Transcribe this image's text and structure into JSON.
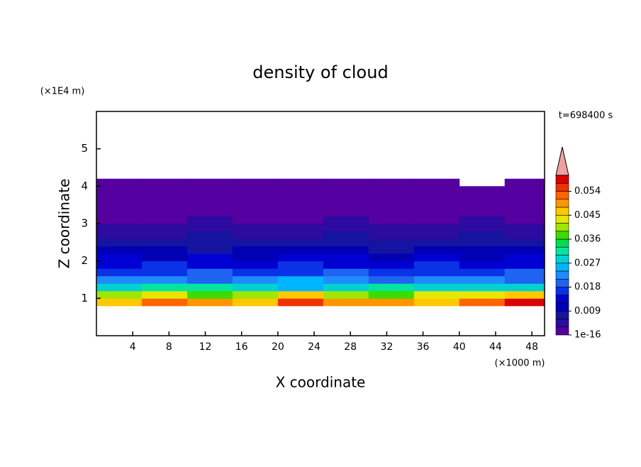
{
  "chart_data": {
    "type": "contour",
    "title": "density of cloud",
    "x_label": "X coordinate",
    "y_label": "Z coordinate",
    "x_unit": "(×1000 m)",
    "y_unit": "(×1E4 m)",
    "annotation": "t=698400 s",
    "xlim": [
      0,
      49.4
    ],
    "ylim": [
      0,
      6
    ],
    "xticks": [
      4,
      8,
      12,
      16,
      20,
      24,
      28,
      32,
      36,
      40,
      44,
      48
    ],
    "yticks": [
      1,
      2,
      3,
      4,
      5
    ],
    "x": [
      2.5,
      7.5,
      12.5,
      17.5,
      22.5,
      27.5,
      32.5,
      37.5,
      42.5,
      47.5
    ],
    "y": [
      0.9,
      1.1,
      1.3,
      1.5,
      1.7,
      1.9,
      2.1,
      2.3,
      2.5,
      2.7,
      2.9,
      3.1,
      3.3,
      3.5,
      3.7,
      3.9,
      4.1
    ],
    "z": [
      [
        0.048,
        0.052,
        0.05,
        0.046,
        0.055,
        0.049,
        0.051,
        0.047,
        0.053,
        0.057
      ],
      [
        0.04,
        0.044,
        0.038,
        0.042,
        0.046,
        0.041,
        0.039,
        0.043,
        0.045,
        0.048
      ],
      [
        0.028,
        0.031,
        0.033,
        0.029,
        0.027,
        0.03,
        0.032,
        0.028,
        0.03,
        0.029
      ],
      [
        0.022,
        0.024,
        0.021,
        0.023,
        0.025,
        0.022,
        0.02,
        0.024,
        0.023,
        0.021
      ],
      [
        0.018,
        0.017,
        0.019,
        0.018,
        0.016,
        0.019,
        0.018,
        0.017,
        0.018,
        0.019
      ],
      [
        0.015,
        0.016,
        0.014,
        0.015,
        0.016,
        0.014,
        0.015,
        0.016,
        0.015,
        0.014
      ],
      [
        0.013,
        0.012,
        0.013,
        0.012,
        0.013,
        0.013,
        0.012,
        0.013,
        0.012,
        0.013
      ],
      [
        0.01,
        0.011,
        0.009,
        0.01,
        0.011,
        0.01,
        0.009,
        0.01,
        0.011,
        0.01
      ],
      [
        0.008,
        0.007,
        0.008,
        0.008,
        0.007,
        0.008,
        0.008,
        0.007,
        0.008,
        0.007
      ],
      [
        0.006,
        0.006,
        0.007,
        0.006,
        0.006,
        0.007,
        0.006,
        0.006,
        0.007,
        0.006
      ],
      [
        0.005,
        0.004,
        0.005,
        0.005,
        0.004,
        0.005,
        0.005,
        0.004,
        0.005,
        0.005
      ],
      [
        0.003,
        0.003,
        0.004,
        0.003,
        0.003,
        0.004,
        0.003,
        0.003,
        0.004,
        0.003
      ],
      [
        0.001,
        0.001,
        0.001,
        0.001,
        0.001,
        0.001,
        0.001,
        0.001,
        0.001,
        0.001
      ],
      [
        0.001,
        0.001,
        0.001,
        0.001,
        0.001,
        0.001,
        0.001,
        0.001,
        0.001,
        0.001
      ],
      [
        0.001,
        0.001,
        0.001,
        0.001,
        0.001,
        0.001,
        0.001,
        0.001,
        0.001,
        0.001
      ],
      [
        0.001,
        0.001,
        0.001,
        0.001,
        0.001,
        0.001,
        0.001,
        0.001,
        0.001,
        0.001
      ],
      [
        0.001,
        0.001,
        0.001,
        0.001,
        0.001,
        0.001,
        0.001,
        0.001,
        null,
        0.001
      ]
    ],
    "clim": [
      1e-16,
      0.06
    ],
    "cticks": [
      {
        "value": 1e-16,
        "label": "1e-16"
      },
      0.009,
      0.018,
      0.027,
      0.036,
      0.045,
      0.054
    ],
    "colors": [
      "#5500a0",
      "#2d0aa0",
      "#1414a0",
      "#0000b4",
      "#0000d2",
      "#0a32e6",
      "#1e64f0",
      "#1e8cff",
      "#00b4ff",
      "#00d2d2",
      "#00e6a0",
      "#00dc50",
      "#3cdc00",
      "#a0e600",
      "#e6e600",
      "#ffc800",
      "#ff9600",
      "#ff6400",
      "#f03200",
      "#dc0000"
    ],
    "extend_color": "#f0a0a0"
  }
}
